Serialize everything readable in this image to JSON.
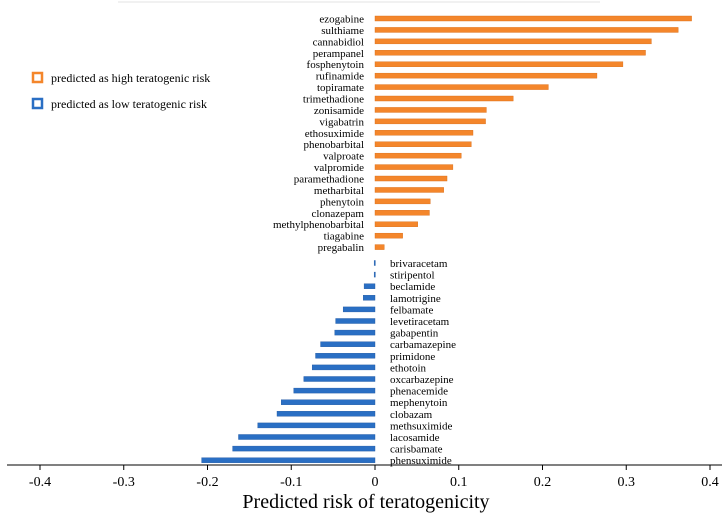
{
  "chart_data": {
    "type": "bar",
    "orientation": "horizontal",
    "title": "",
    "xlabel": "Predicted risk of teratogenicity",
    "ylabel": "",
    "xlim": [
      -0.4,
      0.4
    ],
    "xticks": [
      "-0.4",
      "-0.3",
      "-0.2",
      "-0.1",
      "0",
      "0.1",
      "0.2",
      "0.3",
      "0.4"
    ],
    "legend_position": "top-left",
    "series": [
      {
        "name": "predicted as high teratogenic risk",
        "color": "#f4862b",
        "categories": [
          "ezogabine",
          "sulthiame",
          "cannabidiol",
          "perampanel",
          "fosphenytoin",
          "rufinamide",
          "topiramate",
          "trimethadione",
          "zonisamide",
          "vigabatrin",
          "ethosuximide",
          "phenobarbital",
          "valproate",
          "valpromide",
          "paramethadione",
          "metharbital",
          "phenytoin",
          "clonazepam",
          "methylphenobarbital",
          "tiagabine",
          "pregabalin"
        ],
        "values": [
          0.378,
          0.362,
          0.33,
          0.323,
          0.296,
          0.265,
          0.207,
          0.165,
          0.133,
          0.132,
          0.117,
          0.115,
          0.103,
          0.093,
          0.086,
          0.082,
          0.066,
          0.065,
          0.051,
          0.033,
          0.011
        ]
      },
      {
        "name": "predicted as low teratogenic risk",
        "color": "#2a6fc4",
        "categories": [
          "brivaracetam",
          "stiripentol",
          "beclamide",
          "lamotrigine",
          "felbamate",
          "levetiracetam",
          "gabapentin",
          "carbamazepine",
          "primidone",
          "ethotoin",
          "oxcarbazepine",
          "phenacemide",
          "mephenytoin",
          "clobazam",
          "methsuximide",
          "lacosamide",
          "carisbamate",
          "phensuximide"
        ],
        "values": [
          -0.001,
          -0.001,
          -0.013,
          -0.014,
          -0.038,
          -0.047,
          -0.048,
          -0.065,
          -0.071,
          -0.075,
          -0.085,
          -0.097,
          -0.112,
          -0.117,
          -0.14,
          -0.163,
          -0.17,
          -0.207
        ]
      }
    ]
  }
}
